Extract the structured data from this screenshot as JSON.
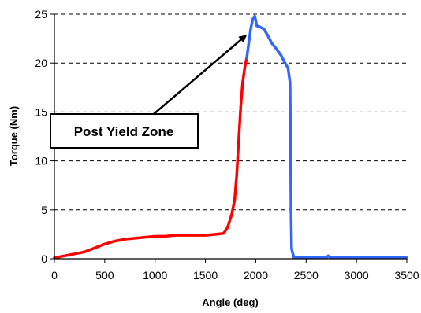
{
  "chart_data": {
    "type": "line",
    "xlabel": "Angle (deg)",
    "ylabel": "Torque (Nm)",
    "xlim": [
      0,
      3500
    ],
    "ylim": [
      0,
      25
    ],
    "xticks": [
      0,
      500,
      1000,
      1500,
      2000,
      2500,
      3000,
      3500
    ],
    "yticks": [
      0,
      5,
      10,
      15,
      20,
      25
    ],
    "grid": "horizontal dashed",
    "series": [
      {
        "color": "#ff0000",
        "x": [
          0,
          100,
          200,
          300,
          400,
          500,
          600,
          700,
          800,
          900,
          1000,
          1100,
          1200,
          1300,
          1400,
          1500,
          1600,
          1680,
          1720,
          1760,
          1790,
          1810,
          1830,
          1850,
          1870,
          1890,
          1910
        ],
        "y": [
          0.1,
          0.3,
          0.5,
          0.7,
          1.1,
          1.5,
          1.8,
          2.0,
          2.1,
          2.2,
          2.3,
          2.3,
          2.4,
          2.4,
          2.4,
          2.4,
          2.5,
          2.6,
          3.2,
          4.5,
          6.0,
          8.5,
          12.0,
          15.5,
          18.0,
          19.5,
          20.5
        ]
      },
      {
        "color": "#3366ff",
        "x": [
          1910,
          1930,
          1950,
          1970,
          1990,
          2010,
          2040,
          2080,
          2120,
          2160,
          2200,
          2250,
          2290,
          2320,
          2340,
          2345,
          2350,
          2355,
          2360,
          2380,
          2400,
          2500,
          2700,
          2720,
          2740,
          3000,
          3300,
          3500
        ],
        "y": [
          20.5,
          22.0,
          23.5,
          24.5,
          24.8,
          23.8,
          23.7,
          23.5,
          22.8,
          22.0,
          21.5,
          20.8,
          20.0,
          19.5,
          18.0,
          12.0,
          5.0,
          1.2,
          0.8,
          0.1,
          0.1,
          0.1,
          0.1,
          0.3,
          0.1,
          0.1,
          0.1,
          0.1
        ]
      }
    ],
    "annotation": {
      "text": "Post Yield Zone",
      "arrow_to": [
        1900,
        22.8
      ]
    }
  }
}
